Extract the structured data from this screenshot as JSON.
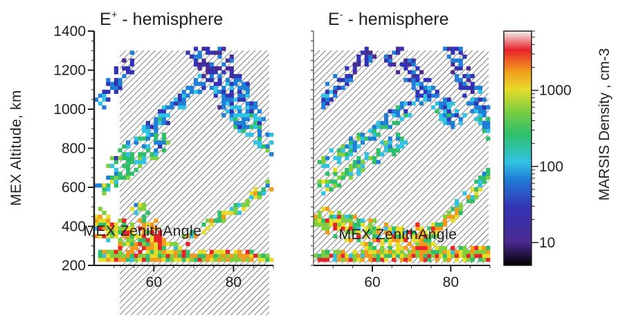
{
  "chart_data": [
    {
      "type": "heatmap",
      "title": "E+ - hemisphere",
      "title_base": "E",
      "title_sup": "+",
      "title_rest": " - hemisphere",
      "xlabel": "MEX ZenithAngle",
      "ylabel": "MEX Altitude, km",
      "xlim": [
        45,
        90
      ],
      "ylim": [
        200,
        1400
      ],
      "xticks": [
        "60",
        "80"
      ],
      "yticks": [
        "200",
        "400",
        "600",
        "800",
        "1000",
        "1200",
        "1400"
      ],
      "hatched_region": {
        "x": [
          50,
          88
        ],
        "y": [
          250,
          1300
        ]
      },
      "ribbons": [
        {
          "from": [
            46,
            230
          ],
          "to": [
            88,
            235
          ],
          "width": 45,
          "decay": 0.05,
          "density": 0.8
        },
        {
          "from": [
            46,
            400
          ],
          "to": [
            64,
            250
          ],
          "width": 90,
          "decay": 0.03,
          "density": 0.55
        },
        {
          "from": [
            56,
            480
          ],
          "to": [
            63,
            280
          ],
          "width": 50,
          "decay": 0.02,
          "density": 0.45
        },
        {
          "from": [
            47,
            600
          ],
          "to": [
            62,
            820
          ],
          "width": 60,
          "decay": 0.05,
          "density": 0.45
        },
        {
          "from": [
            49,
            700
          ],
          "to": [
            70,
            1100
          ],
          "width": 55,
          "decay": 0.1,
          "density": 0.4
        },
        {
          "from": [
            47,
            1050
          ],
          "to": [
            54,
            1250
          ],
          "width": 60,
          "decay": 0.15,
          "density": 0.35
        },
        {
          "from": [
            66,
            300
          ],
          "to": [
            89,
            600
          ],
          "width": 40,
          "decay": 0.05,
          "density": 0.45
        },
        {
          "from": [
            70,
            1280
          ],
          "to": [
            82,
            900
          ],
          "width": 80,
          "decay": 0.1,
          "density": 0.5
        },
        {
          "from": [
            76,
            1300
          ],
          "to": [
            88,
            800
          ],
          "width": 70,
          "decay": 0.1,
          "density": 0.35
        }
      ]
    },
    {
      "type": "heatmap",
      "title": "E- - hemisphere",
      "title_base": "E",
      "title_sup": "-",
      "title_rest": " - hemisphere",
      "xlabel": "MEX ZenithAngle",
      "ylabel": "",
      "xlim": [
        45,
        90
      ],
      "ylim": [
        200,
        1400
      ],
      "xticks": [
        "60",
        "80"
      ],
      "yticks": [],
      "hatched_region": {
        "x": [
          45,
          90
        ],
        "y": [
          250,
          1300
        ]
      },
      "ribbons": [
        {
          "from": [
            46,
            235
          ],
          "to": [
            89,
            250
          ],
          "width": 40,
          "decay": 0.05,
          "density": 0.85
        },
        {
          "from": [
            46,
            420
          ],
          "to": [
            72,
            300
          ],
          "width": 80,
          "decay": 0.03,
          "density": 0.55
        },
        {
          "from": [
            58,
            300
          ],
          "to": [
            76,
            390
          ],
          "width": 40,
          "decay": 0.02,
          "density": 0.55
        },
        {
          "from": [
            47,
            600
          ],
          "to": [
            66,
            820
          ],
          "width": 55,
          "decay": 0.05,
          "density": 0.45
        },
        {
          "from": [
            48,
            720
          ],
          "to": [
            72,
            1050
          ],
          "width": 55,
          "decay": 0.1,
          "density": 0.4
        },
        {
          "from": [
            47,
            1050
          ],
          "to": [
            58,
            1250
          ],
          "width": 60,
          "decay": 0.15,
          "density": 0.35
        },
        {
          "from": [
            74,
            320
          ],
          "to": [
            89,
            650
          ],
          "width": 45,
          "decay": 0.05,
          "density": 0.45
        },
        {
          "from": [
            66,
            1250
          ],
          "to": [
            80,
            950
          ],
          "width": 80,
          "decay": 0.1,
          "density": 0.4
        },
        {
          "from": [
            80,
            1300
          ],
          "to": [
            89,
            900
          ],
          "width": 70,
          "decay": 0.1,
          "density": 0.35
        }
      ]
    }
  ],
  "colorbar": {
    "label": "MARSIS Density , cm-3",
    "scale": "log",
    "range": [
      5,
      6000
    ],
    "tick_labels": [
      "10",
      "100",
      "1000"
    ],
    "tick_values": [
      10,
      100,
      1000
    ],
    "colors": [
      "#000000",
      "#4b2a91",
      "#3333b5",
      "#1f7fd6",
      "#31c2e4",
      "#2fbf6b",
      "#7fcf3f",
      "#e6dc2a",
      "#f39a1e",
      "#e8232a"
    ]
  }
}
